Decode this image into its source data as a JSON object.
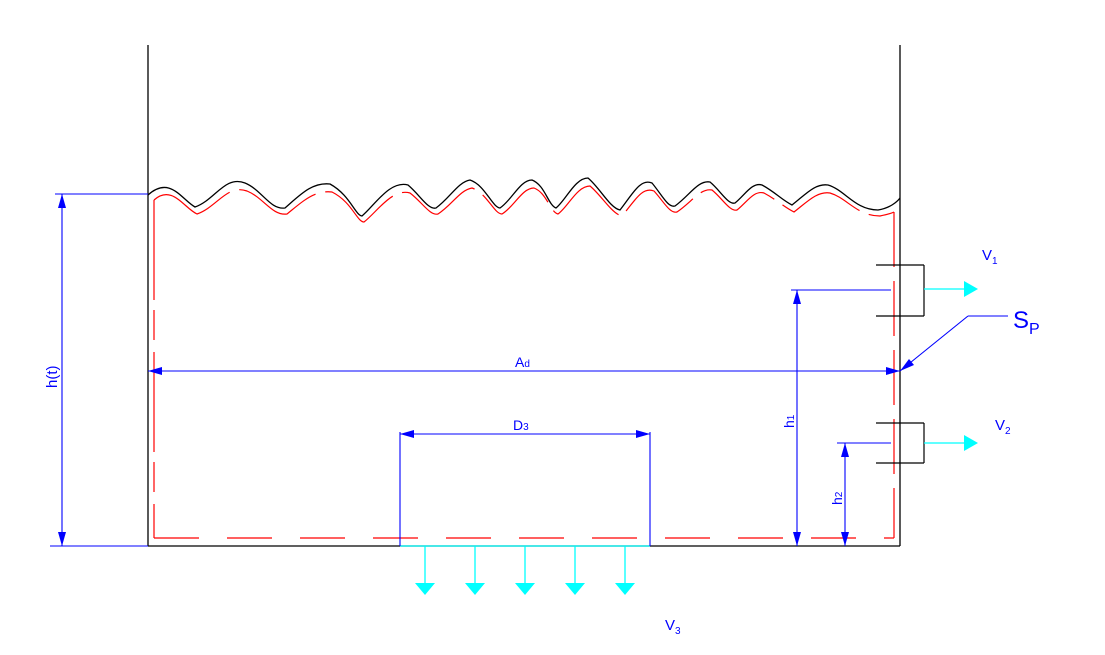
{
  "labels": {
    "v1": "V",
    "v1_sub": "1",
    "v2": "V",
    "v2_sub": "2",
    "v3": "V",
    "v3_sub": "3",
    "sp": "S",
    "sp_sub": "P",
    "ad": "A",
    "ad_sub": "d",
    "d3": "D",
    "d3_sub": "3",
    "h1": "h",
    "h1_sub": "1",
    "h2": "h",
    "h2_sub": "2",
    "ht": "h(t)"
  },
  "colors": {
    "tank": "#000000",
    "liner": "#ff0000",
    "dimension": "#0000ff",
    "flow": "#00ffff"
  }
}
